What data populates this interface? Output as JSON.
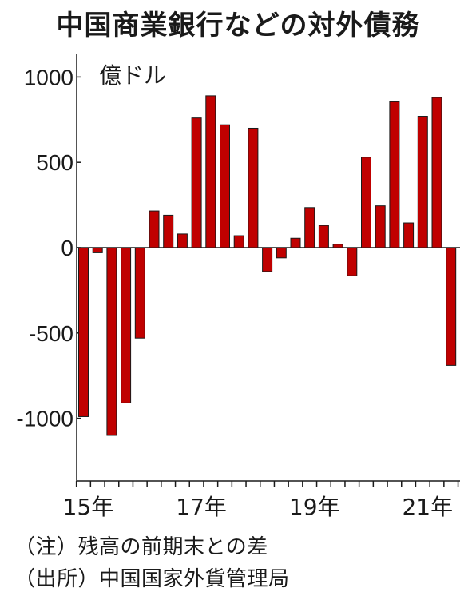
{
  "chart_data": {
    "type": "bar",
    "title": "中国商業銀行などの対外債務",
    "ylabel": "億ドル",
    "ylim": [
      -1350,
      1070
    ],
    "yticks": [
      1000,
      500,
      0,
      -500,
      -1000
    ],
    "ytick_labels": [
      "1000",
      "500",
      "0",
      "-500",
      "-1000"
    ],
    "x_tick_labels": [
      "15年",
      "17年",
      "19年",
      "21年"
    ],
    "x_tick_label_index": [
      0,
      8,
      16,
      24
    ],
    "categories": [
      "15Q1",
      "15Q2",
      "15Q3",
      "15Q4",
      "16Q1",
      "16Q2",
      "16Q3",
      "16Q4",
      "17Q1",
      "17Q2",
      "17Q3",
      "17Q4",
      "18Q1",
      "18Q2",
      "18Q3",
      "18Q4",
      "19Q1",
      "19Q2",
      "19Q3",
      "19Q4",
      "20Q1",
      "20Q2",
      "20Q3",
      "20Q4",
      "21Q1",
      "21Q2",
      "21Q3"
    ],
    "values": [
      -990,
      -30,
      -1100,
      -910,
      -530,
      215,
      190,
      80,
      760,
      890,
      720,
      70,
      700,
      -140,
      -60,
      55,
      235,
      130,
      20,
      -165,
      530,
      245,
      855,
      145,
      770,
      880,
      -690
    ],
    "bar_color": "#c00000",
    "grid": false,
    "legend": "none"
  },
  "notes": {
    "note1": "（注）残高の前期末との差",
    "note2": "（出所）中国国家外貨管理局"
  }
}
